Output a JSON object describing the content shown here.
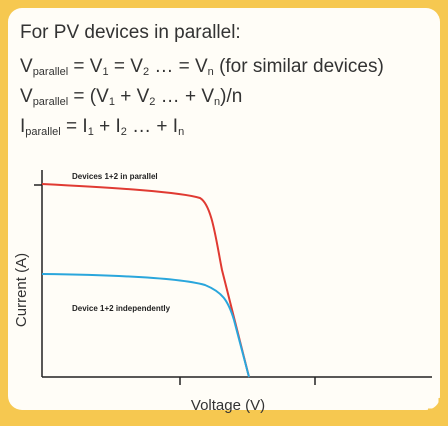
{
  "heading": "For PV devices in parallel:",
  "formulas": [
    [
      {
        "text": "V"
      },
      {
        "sub": "parallel"
      },
      {
        "text": " = V"
      },
      {
        "sub": "1"
      },
      {
        "text": " = V"
      },
      {
        "sub": "2"
      },
      {
        "text": " … = V"
      },
      {
        "sub": "n"
      },
      {
        "text": " (for similar devices)"
      }
    ],
    [
      {
        "text": "V"
      },
      {
        "sub": "parallel"
      },
      {
        "text": " = (V"
      },
      {
        "sub": "1"
      },
      {
        "text": " + V"
      },
      {
        "sub": "2"
      },
      {
        "text": " … + V"
      },
      {
        "sub": "n"
      },
      {
        "text": ")/n"
      }
    ],
    [
      {
        "text": "I"
      },
      {
        "sub": "parallel"
      },
      {
        "text": " = I"
      },
      {
        "sub": "1"
      },
      {
        "text": " + I"
      },
      {
        "sub": "2"
      },
      {
        "text": " … + I"
      },
      {
        "sub": "n"
      }
    ]
  ],
  "diagram": {
    "curve_labels": [
      "Devices 1+2 in parallel",
      "Device 1+2 independently"
    ],
    "y_axis_label": "Current (A)",
    "x_axis_label": "Voltage (V)"
  }
}
